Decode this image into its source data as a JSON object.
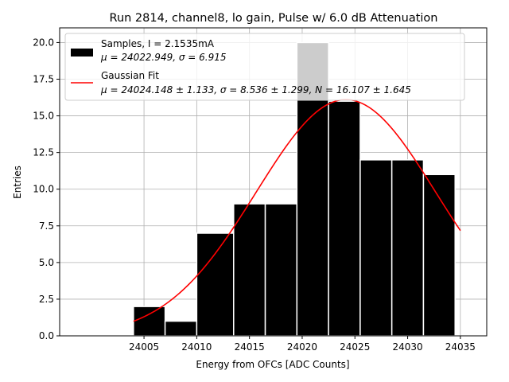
{
  "chart_data": {
    "type": "bar",
    "title": "Run 2814, channel8, lo gain, Pulse w/ 6.0 dB Attenuation",
    "xlabel": "Energy from OFCs [ADC Counts]",
    "ylabel": "Entries",
    "xlim": [
      23997.0,
      24037.5
    ],
    "ylim": [
      0,
      21
    ],
    "xticks": [
      24005,
      24010,
      24015,
      24020,
      24025,
      24030,
      24035
    ],
    "yticks": [
      0.0,
      2.5,
      5.0,
      7.5,
      10.0,
      12.5,
      15.0,
      17.5,
      20.0
    ],
    "grid": true,
    "legend_position": "top-left",
    "colors": {
      "samples": "#000000",
      "gaussian": "#ff0000",
      "grid": "#b0b0b0",
      "bar_edge": "#ffffff"
    },
    "bins": [
      {
        "x0": 24004.0,
        "x1": 24007.0,
        "count": 2
      },
      {
        "x0": 24007.0,
        "x1": 24010.0,
        "count": 1
      },
      {
        "x0": 24010.0,
        "x1": 24013.5,
        "count": 7
      },
      {
        "x0": 24013.5,
        "x1": 24016.5,
        "count": 9
      },
      {
        "x0": 24016.5,
        "x1": 24019.5,
        "count": 9
      },
      {
        "x0": 24019.5,
        "x1": 24022.5,
        "count": 20
      },
      {
        "x0": 24022.5,
        "x1": 24025.5,
        "count": 16
      },
      {
        "x0": 24025.5,
        "x1": 24028.5,
        "count": 12
      },
      {
        "x0": 24028.5,
        "x1": 24031.5,
        "count": 12
      },
      {
        "x0": 24031.5,
        "x1": 24034.5,
        "count": 11
      }
    ],
    "gaussian_fit": {
      "mu": 24024.148,
      "sigma": 8.536,
      "N": 16.107,
      "x_range": [
        24004,
        24035
      ]
    },
    "series": [
      {
        "name": "Samples, I = 2.1535mA",
        "stats": "μ = 24022.949, σ = 6.915"
      },
      {
        "name": "Gaussian Fit",
        "stats": "μ = 24024.148 ± 1.133, σ = 8.536 ± 1.299, N = 16.107 ± 1.645"
      }
    ]
  }
}
